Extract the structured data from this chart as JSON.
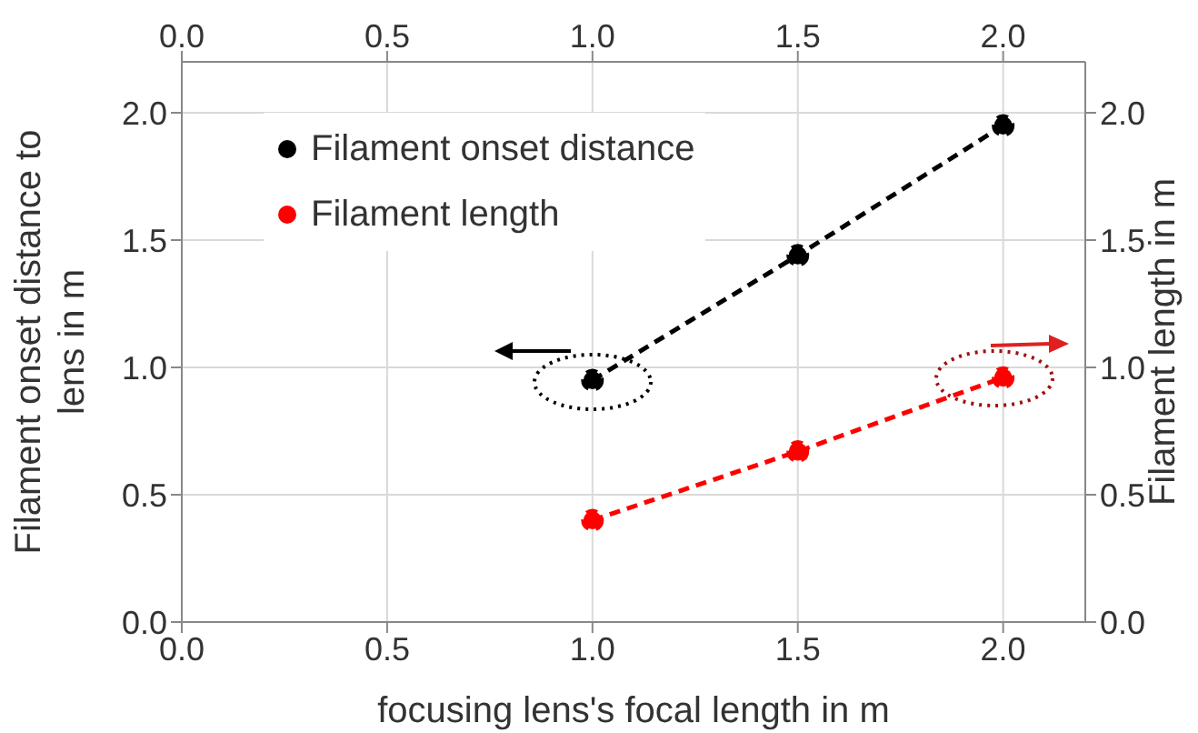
{
  "chart_data": {
    "type": "line",
    "xlabel": "focusing lens's focal length in m",
    "ylabel": "Filament onset distance to lens in m",
    "y2label": "Filament length in m",
    "x": [
      1.0,
      1.5,
      2.0
    ],
    "series": [
      {
        "name": "Filament onset distance",
        "color": "#000000",
        "values": [
          0.95,
          1.44,
          1.95
        ]
      },
      {
        "name": "Filament length",
        "color": "#ff0000",
        "values": [
          0.4,
          0.67,
          0.96
        ],
        "axis": "y2"
      }
    ],
    "xlim": [
      0,
      2.2
    ],
    "xticks": [
      {
        "value": 0,
        "label": "0.0"
      },
      0.5,
      {
        "value": 1,
        "label": "1.0"
      },
      1.5,
      {
        "value": 2,
        "label": "2.0"
      }
    ],
    "x2lim": [
      0,
      2.2
    ],
    "x2ticks": [
      {
        "value": 0,
        "label": "0.0"
      },
      0.5,
      {
        "value": 1,
        "label": "1.0"
      },
      1.5,
      {
        "value": 2,
        "label": "2.0"
      }
    ],
    "ylim": [
      0,
      2.2
    ],
    "yticks": [
      {
        "value": 0,
        "label": "0.0"
      },
      0.5,
      {
        "value": 1,
        "label": "1.0"
      },
      1.5,
      {
        "value": 2,
        "label": "2.0"
      }
    ],
    "y2lim": [
      0,
      2.2
    ],
    "y2ticks": [
      {
        "value": 0,
        "label": "0.0"
      },
      0.5,
      {
        "value": 1,
        "label": "1.0"
      },
      1.5,
      {
        "value": 2,
        "label": "2.0"
      }
    ],
    "grid": true,
    "legend": "top left",
    "marker": "circle",
    "line_style": "dashed"
  }
}
